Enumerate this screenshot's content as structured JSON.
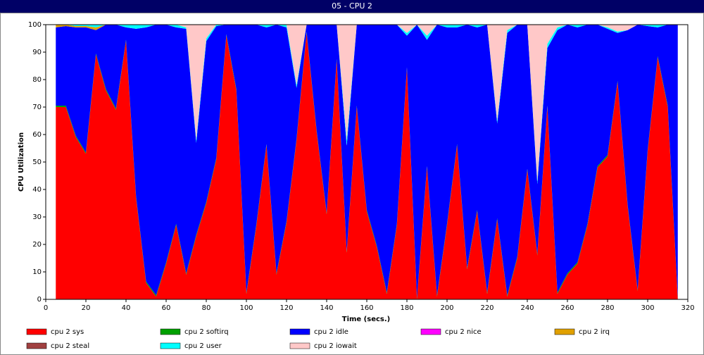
{
  "chart_data": {
    "type": "stacked_area",
    "title": "05 - CPU 2",
    "xlabel": "Time (secs.)",
    "ylabel": "CPU Utilization",
    "xlim": [
      0,
      320
    ],
    "xticks": [
      0,
      20,
      40,
      60,
      80,
      100,
      120,
      140,
      160,
      180,
      200,
      220,
      240,
      260,
      280,
      300,
      320
    ],
    "ylim": [
      0,
      100
    ],
    "yticks": [
      0,
      10,
      20,
      30,
      40,
      50,
      60,
      70,
      80,
      90,
      100
    ],
    "x": [
      5,
      10,
      15,
      20,
      25,
      30,
      35,
      40,
      45,
      50,
      55,
      60,
      65,
      70,
      75,
      80,
      85,
      90,
      95,
      100,
      105,
      110,
      115,
      120,
      125,
      130,
      135,
      140,
      145,
      150,
      155,
      160,
      165,
      170,
      175,
      180,
      185,
      190,
      195,
      200,
      205,
      210,
      215,
      220,
      225,
      230,
      235,
      240,
      245,
      250,
      255,
      260,
      265,
      270,
      275,
      280,
      285,
      290,
      295,
      300,
      305,
      310,
      315
    ],
    "series": [
      {
        "name": "cpu 2 sys",
        "color": "#ff0000",
        "values": [
          70,
          70,
          59,
          53,
          89,
          76,
          69,
          94,
          37,
          6,
          1,
          13,
          27,
          9,
          23,
          35,
          51,
          96,
          76,
          2,
          27,
          56,
          9,
          28,
          58,
          97,
          61,
          31,
          87,
          17,
          70,
          32,
          19,
          2,
          27,
          84,
          0,
          48,
          1,
          27,
          56,
          11,
          32,
          2,
          29,
          1,
          15,
          47,
          16,
          70,
          2,
          9,
          13,
          27,
          48,
          52,
          79,
          34,
          3,
          54,
          88,
          70,
          0
        ]
      },
      {
        "name": "cpu 2 softirq",
        "color": "#00a000",
        "values": [
          0.5,
          0.5,
          0.5,
          0.5,
          0.5,
          0.5,
          0.5,
          0.5,
          0.5,
          0.5,
          0.5,
          0.5,
          0.5,
          0.5,
          0.5,
          0.5,
          0.5,
          0.5,
          0.5,
          0.5,
          0.5,
          0.5,
          0.5,
          0.5,
          0.5,
          0.5,
          0.5,
          0.5,
          0.5,
          0.5,
          0.5,
          0.5,
          0.5,
          0.5,
          0.5,
          0.5,
          0.5,
          0.5,
          0.5,
          0.5,
          0.5,
          0.5,
          0.5,
          0.5,
          0.5,
          0.5,
          0.5,
          0.5,
          0.5,
          0.5,
          0.5,
          0.5,
          0.5,
          0.5,
          0.5,
          0.5,
          0.5,
          0.5,
          0.5,
          0.5,
          0.5,
          0.5,
          0.5
        ]
      },
      {
        "name": "cpu 2 idle",
        "color": "#0000ff",
        "values": [
          28.5,
          29,
          39.5,
          45.5,
          8.5,
          23.5,
          30.5,
          4.5,
          61,
          92.5,
          98.5,
          86.5,
          71.5,
          89,
          33.5,
          58.5,
          48,
          3.5,
          23.5,
          97.5,
          72.5,
          42.5,
          90.5,
          70.5,
          18.5,
          2.5,
          38.5,
          68.5,
          12.5,
          38.5,
          29.5,
          67.5,
          80.5,
          97.5,
          72.5,
          11.5,
          99.5,
          46,
          98.5,
          71.5,
          42.5,
          88.5,
          66.5,
          97.5,
          34.5,
          95.5,
          84.5,
          52.5,
          25.5,
          21,
          95.5,
          90.5,
          85.5,
          72.5,
          51.5,
          46,
          17.5,
          63.5,
          96.5,
          45,
          10.5,
          29.5,
          99.5
        ]
      },
      {
        "name": "cpu 2 nice",
        "color": "#ff00ff",
        "values": [
          0,
          0,
          0,
          0,
          0,
          0,
          0,
          0,
          0,
          0,
          0,
          0,
          0,
          0,
          0,
          0,
          0,
          0,
          0,
          0,
          0,
          0,
          0,
          0,
          0,
          0,
          0,
          0,
          0,
          0,
          0,
          0,
          0,
          0,
          0,
          0,
          0,
          0,
          0,
          0,
          0,
          0,
          0,
          0,
          0,
          0,
          0,
          0,
          0,
          0,
          0,
          0,
          0,
          0,
          0,
          0,
          0,
          0,
          0,
          0,
          0,
          0,
          0
        ]
      },
      {
        "name": "cpu 2 irq",
        "color": "#e0a000",
        "values": [
          1,
          0.5,
          0.5,
          0.5,
          1,
          0,
          0,
          0,
          0,
          0,
          0,
          0,
          0,
          0,
          0,
          0,
          0,
          0,
          0,
          0,
          0,
          0,
          0,
          0,
          0,
          0,
          0,
          0,
          0,
          0,
          0,
          0,
          0,
          0,
          0,
          0,
          0,
          0,
          0,
          0,
          0,
          0,
          0,
          0,
          0,
          0,
          0,
          0,
          0,
          0,
          0,
          0,
          0,
          0,
          0,
          0,
          0,
          0,
          0,
          0,
          0,
          0,
          0
        ]
      },
      {
        "name": "cpu 2 steal",
        "color": "#a04040",
        "values": [
          0,
          0,
          0,
          0,
          0,
          0,
          0,
          0,
          0,
          0,
          0,
          0,
          0,
          0,
          0,
          0,
          0,
          0,
          0,
          0,
          0,
          0,
          0,
          0,
          0,
          0,
          0,
          0,
          0,
          0,
          0,
          0,
          0,
          0,
          0,
          0,
          0,
          0,
          0,
          0,
          0,
          0,
          0,
          0,
          0,
          0,
          0,
          0,
          0,
          0,
          0,
          0,
          0,
          0,
          0,
          0,
          0,
          0,
          0,
          0,
          0,
          0,
          0
        ]
      },
      {
        "name": "cpu 2 user",
        "color": "#00ffff",
        "values": [
          0,
          0,
          0.5,
          0.5,
          1,
          0,
          0,
          1,
          1.5,
          1,
          0,
          0,
          1,
          0.5,
          1,
          1,
          0.5,
          0,
          0,
          0,
          0,
          1,
          0,
          1,
          1,
          0,
          0,
          0,
          0,
          2,
          0,
          0,
          0,
          0,
          0,
          1,
          0,
          1.5,
          0,
          1,
          1,
          0,
          1,
          0,
          1,
          1,
          0,
          0,
          1,
          1.5,
          1,
          0,
          1,
          0,
          0,
          0.5,
          0.5,
          0,
          0,
          0.5,
          1,
          0,
          0
        ]
      },
      {
        "name": "cpu 2 iowait",
        "color": "#ffc8c8",
        "values": [
          0,
          0,
          0,
          0,
          0,
          0,
          0,
          0,
          0,
          0,
          0,
          0,
          0,
          1,
          42,
          5,
          0,
          0,
          0,
          0,
          0,
          0,
          0,
          0,
          22,
          0,
          0,
          0,
          0,
          42,
          0,
          0,
          0,
          0,
          0,
          3,
          0,
          4,
          0,
          0,
          0,
          0,
          0,
          0,
          35,
          2,
          0,
          0,
          57,
          7,
          1,
          0,
          0,
          0,
          0,
          1,
          2.5,
          2,
          0,
          0,
          0,
          0,
          0
        ]
      }
    ]
  }
}
